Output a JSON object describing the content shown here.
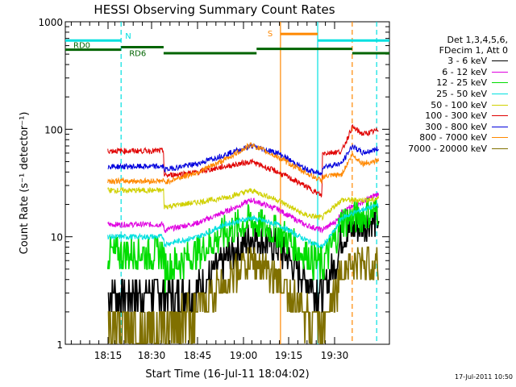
{
  "chart_data": {
    "type": "line",
    "title": "HESSI Observing Summary Count Rates",
    "xlabel": "Start Time (16-Jul-11 18:04:02)",
    "ylabel": "Count Rate (s⁻¹ detector⁻¹)",
    "yscale": "log",
    "ylim": [
      1,
      1000
    ],
    "xlim_minutes": [
      0,
      61
    ],
    "yticks": [
      {
        "value": 1,
        "label": "1"
      },
      {
        "value": 10,
        "label": "10"
      },
      {
        "value": 100,
        "label": "100"
      },
      {
        "value": 1000,
        "label": "1000"
      }
    ],
    "xticks": [
      {
        "minute": 10.97,
        "label": "18:15"
      },
      {
        "minute": 25.97,
        "label": "18:30"
      },
      {
        "minute": 40.97,
        "label": "18:45"
      },
      {
        "minute": 55.97,
        "label": "19:00"
      },
      {
        "minute": 70.97,
        "label": "19:15"
      },
      {
        "minute": 85.97,
        "label": "19:30"
      }
    ],
    "legend_header": [
      "Det 1,3,4,5,6,",
      "FDecim 1, Att 0"
    ],
    "legend_position": "right",
    "series": [
      {
        "name": "3 - 6 keV",
        "color": "#000000",
        "x": [
          8,
          18.5,
          18.6,
          25,
          30,
          35,
          40,
          45,
          48.3,
          51,
          52,
          56,
          58,
          59
        ],
        "y": [
          3,
          3,
          2.8,
          3.2,
          6,
          10,
          8,
          4,
          3,
          6,
          10,
          13,
          14,
          15
        ]
      },
      {
        "name": "6 - 12 keV",
        "color": "#e000e0",
        "x": [
          8,
          18.5,
          18.6,
          25,
          30,
          35,
          40,
          45,
          48.3,
          51,
          52,
          56,
          58,
          59
        ],
        "y": [
          13,
          13,
          11.5,
          13.5,
          17,
          22,
          18,
          13,
          11.5,
          14,
          17,
          21,
          24,
          25
        ]
      },
      {
        "name": "12 - 25 keV",
        "color": "#00dd00",
        "x": [
          8,
          18.5,
          18.6,
          25,
          30,
          35,
          40,
          45,
          48.3,
          51,
          52,
          56,
          58,
          59
        ],
        "y": [
          7,
          7,
          5,
          7,
          11,
          14,
          11,
          7,
          5.5,
          10,
          14,
          16,
          17,
          18
        ]
      },
      {
        "name": "25 - 50 keV",
        "color": "#00e0e0",
        "x": [
          8,
          18.5,
          18.6,
          25,
          30,
          35,
          40,
          45,
          48.3,
          51,
          52,
          56,
          58,
          59
        ],
        "y": [
          10,
          10,
          8.5,
          10,
          13,
          15,
          13,
          9.5,
          8,
          12,
          15,
          18,
          19,
          20
        ]
      },
      {
        "name": "50 - 100 keV",
        "color": "#d0d000",
        "x": [
          8,
          18.5,
          18.6,
          25,
          30,
          35,
          40,
          45,
          48.3,
          51,
          52,
          56,
          58,
          59
        ],
        "y": [
          27,
          27,
          19,
          21,
          23,
          27,
          22,
          16,
          15,
          20,
          22,
          22,
          22,
          23
        ]
      },
      {
        "name": "100 - 300 keV",
        "color": "#e00000",
        "x": [
          8,
          18.5,
          18.6,
          25,
          30,
          35,
          40,
          45,
          48.3,
          48.4,
          52,
          54,
          56,
          58,
          59
        ],
        "y": [
          63,
          63,
          37,
          40,
          45,
          50,
          40,
          30,
          24,
          60,
          62,
          105,
          90,
          95,
          100
        ]
      },
      {
        "name": "300 - 800 keV",
        "color": "#0000dd",
        "x": [
          8,
          18.5,
          18.6,
          25,
          30,
          35,
          40,
          45,
          48.3,
          48.4,
          52,
          54,
          56,
          58,
          59
        ],
        "y": [
          45,
          45,
          42,
          48,
          58,
          70,
          60,
          43,
          38,
          45,
          48,
          70,
          60,
          64,
          66
        ]
      },
      {
        "name": "800 - 7000 keV",
        "color": "#ff8800",
        "x": [
          8,
          18.5,
          18.6,
          25,
          30,
          35,
          40,
          45,
          48.3,
          48.4,
          52,
          54,
          56,
          58,
          59
        ],
        "y": [
          33,
          33,
          32,
          40,
          52,
          72,
          55,
          40,
          33,
          36,
          38,
          58,
          48,
          50,
          52
        ]
      },
      {
        "name": "7000 - 20000 keV",
        "color": "#807000",
        "x": [
          8,
          18.5,
          18.6,
          25,
          30,
          35,
          40,
          45,
          48.3,
          51,
          52,
          56,
          58,
          59
        ],
        "y": [
          1.5,
          1.5,
          1.6,
          2,
          4,
          6,
          4,
          2,
          1.6,
          3,
          5,
          6,
          5.5,
          5
        ]
      }
    ],
    "state_bars": [
      {
        "label": "RD0",
        "color": "#006400",
        "value_at": 550,
        "from_minute": 0,
        "to_minute": 10.5
      },
      {
        "label": "RD6",
        "color": "#006400",
        "value_at": 580,
        "from_minute": 10.5,
        "to_minute": 18.5
      },
      {
        "label": "",
        "color": "#006400",
        "value_at": 510,
        "from_minute": 18.5,
        "to_minute": 36.0
      },
      {
        "label": "",
        "color": "#006400",
        "value_at": 560,
        "from_minute": 36.0,
        "to_minute": 54.0
      },
      {
        "label": "",
        "color": "#006400",
        "value_at": 510,
        "from_minute": 54.0,
        "to_minute": 61.0
      },
      {
        "label": "N",
        "color": "#00e0e0",
        "value_at": 670,
        "from_minute": 0,
        "to_minute": 10.5
      },
      {
        "label": "",
        "color": "#00e0e0",
        "value_at": 670,
        "from_minute": 47.5,
        "to_minute": 61.0
      },
      {
        "label": "S",
        "color": "#ff8800",
        "value_at": 770,
        "from_minute": 40.5,
        "to_minute": 47.5
      }
    ],
    "vertical_markers": [
      {
        "minute": 10.5,
        "color": "#00e0e0",
        "style": "dashed"
      },
      {
        "minute": 40.5,
        "color": "#ff8800",
        "style": "solid"
      },
      {
        "minute": 47.5,
        "color": "#00e0e0",
        "style": "solid"
      },
      {
        "minute": 54.0,
        "color": "#ff8800",
        "style": "dashed"
      },
      {
        "minute": 58.6,
        "color": "#00e0e0",
        "style": "dashed"
      }
    ],
    "timestamp": "17-Jul-2011 10:50"
  }
}
